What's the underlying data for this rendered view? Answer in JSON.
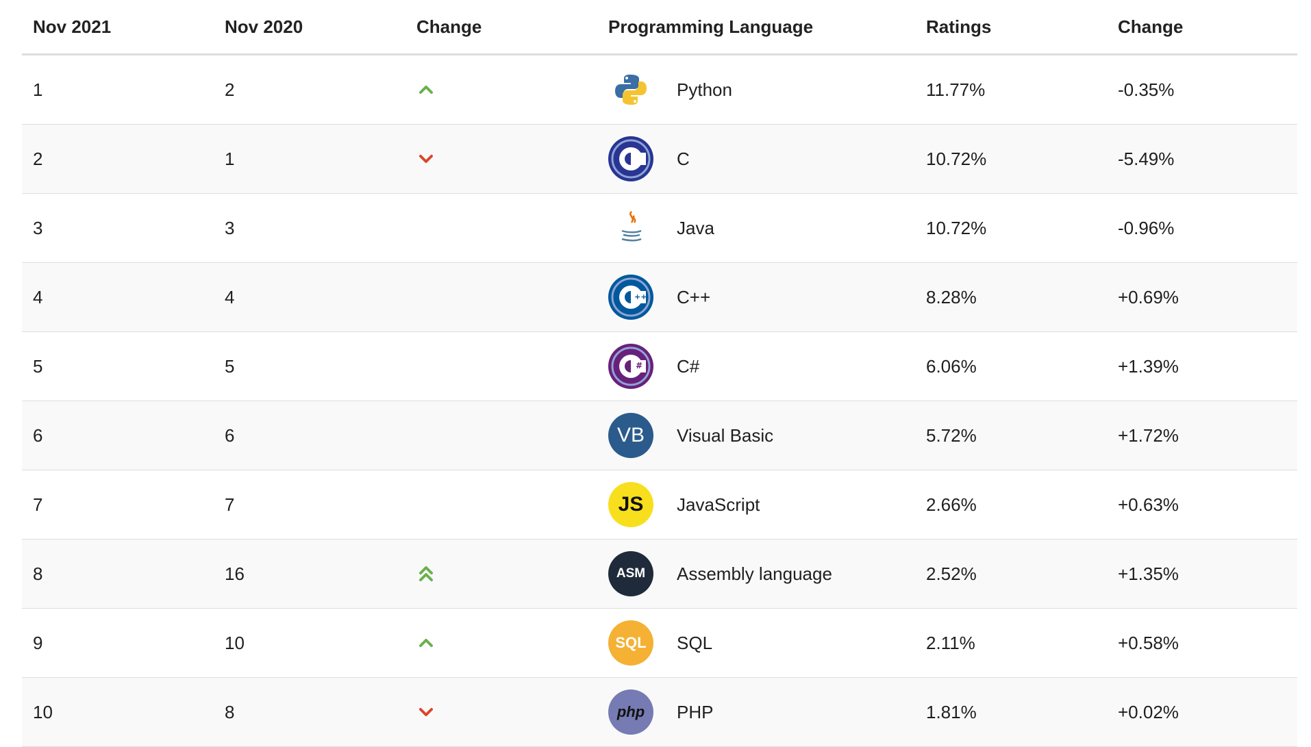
{
  "headers": {
    "nov2021": "Nov 2021",
    "nov2020": "Nov 2020",
    "change": "Change",
    "language": "Programming Language",
    "ratings": "Ratings",
    "change2": "Change"
  },
  "rows": [
    {
      "rank2021": "1",
      "rank2020": "2",
      "trend": "up",
      "logo": "python-icon",
      "language": "Python",
      "rating": "11.77%",
      "change": "-0.35%"
    },
    {
      "rank2021": "2",
      "rank2020": "1",
      "trend": "down",
      "logo": "c-icon",
      "language": "C",
      "rating": "10.72%",
      "change": "-5.49%"
    },
    {
      "rank2021": "3",
      "rank2020": "3",
      "trend": "none",
      "logo": "java-icon",
      "language": "Java",
      "rating": "10.72%",
      "change": "-0.96%"
    },
    {
      "rank2021": "4",
      "rank2020": "4",
      "trend": "none",
      "logo": "cpp-icon",
      "language": "C++",
      "rating": "8.28%",
      "change": "+0.69%"
    },
    {
      "rank2021": "5",
      "rank2020": "5",
      "trend": "none",
      "logo": "csharp-icon",
      "language": "C#",
      "rating": "6.06%",
      "change": "+1.39%"
    },
    {
      "rank2021": "6",
      "rank2020": "6",
      "trend": "none",
      "logo": "vb-icon",
      "logo_text": "VB",
      "language": "Visual Basic",
      "rating": "5.72%",
      "change": "+1.72%"
    },
    {
      "rank2021": "7",
      "rank2020": "7",
      "trend": "none",
      "logo": "js-icon",
      "logo_text": "JS",
      "language": "JavaScript",
      "rating": "2.66%",
      "change": "+0.63%"
    },
    {
      "rank2021": "8",
      "rank2020": "16",
      "trend": "up-double",
      "logo": "asm-icon",
      "logo_text": "ASM",
      "language": "Assembly language",
      "rating": "2.52%",
      "change": "+1.35%"
    },
    {
      "rank2021": "9",
      "rank2020": "10",
      "trend": "up",
      "logo": "sql-icon",
      "logo_text": "SQL",
      "language": "SQL",
      "rating": "2.11%",
      "change": "+0.58%"
    },
    {
      "rank2021": "10",
      "rank2020": "8",
      "trend": "down",
      "logo": "php-icon",
      "logo_text": "php",
      "language": "PHP",
      "rating": "1.81%",
      "change": "+0.02%"
    }
  ],
  "colors": {
    "up": "#6ab04c",
    "down": "#d9472b",
    "stripe": "#f9f9f9",
    "border": "#dddddd"
  }
}
